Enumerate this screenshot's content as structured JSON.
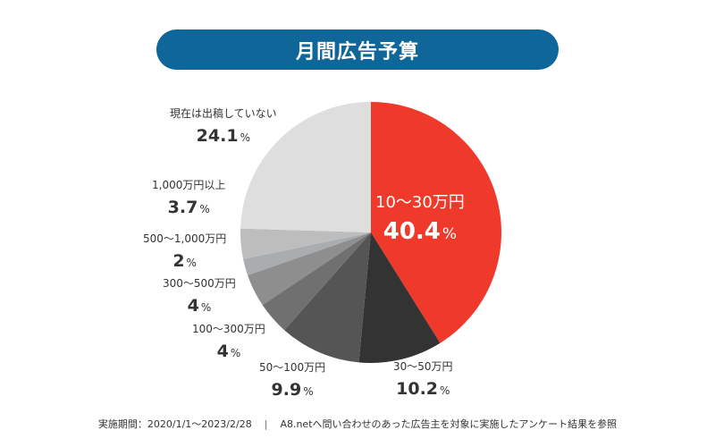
{
  "title": "月間広告予算",
  "chart_data": {
    "type": "pie",
    "title": "月間広告予算",
    "start": "top",
    "direction": "clockwise",
    "slices": [
      {
        "label": "10〜30万円",
        "value": 40.4,
        "color": "#ef3a2b"
      },
      {
        "label": "30〜50万円",
        "value": 10.2,
        "color": "#333333"
      },
      {
        "label": "50〜100万円",
        "value": 9.9,
        "color": "#555555"
      },
      {
        "label": "100〜300万円",
        "value": 4,
        "color": "#707070"
      },
      {
        "label": "300〜500万円",
        "value": 4,
        "color": "#8e8e8e"
      },
      {
        "label": "500〜1,000万円",
        "value": 2,
        "color": "#a9adb0"
      },
      {
        "label": "1,000万円以上",
        "value": 3.7,
        "color": "#bdbdbd"
      },
      {
        "label": "現在は出稿していない",
        "value": 24.1,
        "color": "#dedede"
      }
    ],
    "unit": "%"
  },
  "footer": {
    "period": "実施期間：2020/1/1〜2023/2/28",
    "separator": "|",
    "note": "A8.netへ問い合わせのあった広告主を対象に実施したアンケート結果を参照"
  }
}
